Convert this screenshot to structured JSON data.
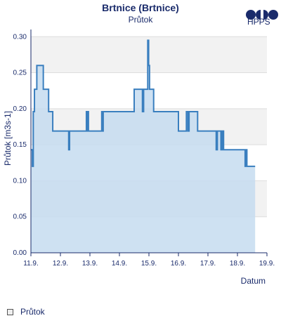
{
  "chart_data": {
    "type": "area",
    "title": "Brtnice (Brtnice)",
    "subtitle": "Průtok",
    "xlabel": "Datum",
    "ylabel": "Průtok [m3s-1]",
    "ylim": [
      0,
      0.31
    ],
    "xlim": [
      11.0,
      19.0
    ],
    "y_ticks": [
      "0.00",
      "0.05",
      "0.10",
      "0.15",
      "0.20",
      "0.25",
      "0.30"
    ],
    "x_ticks": [
      "11.9.",
      "12.9.",
      "13.9.",
      "14.9.",
      "15.9.",
      "16.9.",
      "17.9.",
      "18.9.",
      "19.9."
    ],
    "series": [
      {
        "name": "Průtok",
        "x": [
          11.0,
          11.05,
          11.05,
          11.08,
          11.08,
          11.12,
          11.12,
          11.2,
          11.2,
          11.42,
          11.42,
          11.6,
          11.6,
          11.74,
          11.74,
          12.28,
          12.28,
          12.31,
          12.31,
          12.88,
          12.88,
          12.9,
          12.9,
          12.92,
          12.92,
          12.95,
          12.95,
          13.4,
          13.4,
          13.42,
          13.42,
          13.45,
          13.45,
          13.5,
          13.5,
          14.5,
          14.5,
          14.78,
          14.78,
          14.82,
          14.82,
          14.96,
          14.96,
          14.99,
          14.99,
          15.02,
          15.02,
          15.06,
          15.06,
          15.16,
          15.16,
          16.0,
          16.0,
          16.27,
          16.27,
          16.32,
          16.32,
          16.36,
          16.36,
          16.65,
          16.65,
          17.28,
          17.28,
          17.32,
          17.32,
          17.44,
          17.44,
          17.47,
          17.47,
          17.49,
          17.49,
          17.51,
          17.51,
          17.53,
          17.53,
          17.55,
          17.55,
          18.26,
          18.26,
          18.3,
          18.3,
          18.32,
          18.32,
          18.35,
          18.35,
          18.6
        ],
        "values": [
          0.143,
          0.143,
          0.12,
          0.12,
          0.196,
          0.196,
          0.227,
          0.227,
          0.26,
          0.26,
          0.227,
          0.227,
          0.196,
          0.196,
          0.169,
          0.169,
          0.143,
          0.143,
          0.169,
          0.169,
          0.196,
          0.196,
          0.169,
          0.169,
          0.196,
          0.196,
          0.169,
          0.169,
          0.196,
          0.196,
          0.169,
          0.169,
          0.196,
          0.196,
          0.196,
          0.196,
          0.227,
          0.227,
          0.196,
          0.196,
          0.227,
          0.227,
          0.295,
          0.295,
          0.26,
          0.26,
          0.227,
          0.227,
          0.227,
          0.227,
          0.196,
          0.196,
          0.169,
          0.169,
          0.196,
          0.196,
          0.169,
          0.169,
          0.196,
          0.196,
          0.169,
          0.169,
          0.143,
          0.143,
          0.169,
          0.169,
          0.143,
          0.143,
          0.169,
          0.169,
          0.143,
          0.143,
          0.169,
          0.169,
          0.143,
          0.143,
          0.143,
          0.143,
          0.12,
          0.12,
          0.143,
          0.143,
          0.12,
          0.12,
          0.12,
          0.12
        ],
        "color": "#3a7fbf",
        "fill": "#c6dcf0"
      }
    ],
    "grid": true,
    "legend": "bottom-left"
  },
  "logo": {
    "text": "HPPS",
    "color": "#1a2b6b"
  },
  "legend": {
    "label": "Průtok"
  }
}
